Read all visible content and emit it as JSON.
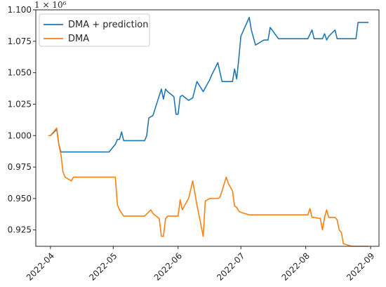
{
  "chart_data": {
    "type": "line",
    "title": "",
    "xlabel": "",
    "ylabel": "",
    "y_offset_label": "1 × 10⁶",
    "xlim": [
      "2022-03-25",
      "2022-09-05"
    ],
    "ylim": [
      0.912,
      1.1
    ],
    "x_ticks": [
      "2022-04-01",
      "2022-05-01",
      "2022-06-01",
      "2022-07-01",
      "2022-08-01",
      "2022-09-01"
    ],
    "x_tick_labels": [
      "2022-04",
      "2022-05",
      "2022-06",
      "2022-07",
      "2022-08",
      "2022-09"
    ],
    "y_ticks": [
      0.925,
      0.95,
      0.975,
      1.0,
      1.025,
      1.05,
      1.075,
      1.1
    ],
    "y_tick_labels": [
      "0.925",
      "0.950",
      "0.975",
      "1.000",
      "1.025",
      "1.050",
      "1.075",
      "1.100"
    ],
    "grid": false,
    "legend_position": "top-left",
    "series": [
      {
        "name": "DMA + prediction",
        "color": "#1f77b4",
        "x": [
          "2022-03-31",
          "2022-04-01",
          "2022-04-04",
          "2022-04-05",
          "2022-04-06",
          "2022-04-08",
          "2022-04-15",
          "2022-04-20",
          "2022-04-25",
          "2022-04-29",
          "2022-05-02",
          "2022-05-03",
          "2022-05-04",
          "2022-05-05",
          "2022-05-06",
          "2022-05-09",
          "2022-05-11",
          "2022-05-12",
          "2022-05-13",
          "2022-05-16",
          "2022-05-17",
          "2022-05-18",
          "2022-05-19",
          "2022-05-20",
          "2022-05-24",
          "2022-05-25",
          "2022-05-26",
          "2022-05-27",
          "2022-05-30",
          "2022-05-31",
          "2022-06-01",
          "2022-06-02",
          "2022-06-03",
          "2022-06-06",
          "2022-06-08",
          "2022-06-10",
          "2022-06-13",
          "2022-06-14",
          "2022-06-16",
          "2022-06-17",
          "2022-06-20",
          "2022-06-22",
          "2022-06-23",
          "2022-06-24",
          "2022-06-27",
          "2022-06-28",
          "2022-06-29",
          "2022-06-30",
          "2022-07-01",
          "2022-07-05",
          "2022-07-06",
          "2022-07-08",
          "2022-07-12",
          "2022-07-13",
          "2022-07-14",
          "2022-07-15",
          "2022-07-19",
          "2022-07-25",
          "2022-07-29",
          "2022-08-01",
          "2022-08-02",
          "2022-08-04",
          "2022-08-05",
          "2022-08-09",
          "2022-08-10",
          "2022-08-11",
          "2022-08-12",
          "2022-08-15",
          "2022-08-16",
          "2022-08-18",
          "2022-08-19",
          "2022-08-25",
          "2022-08-26",
          "2022-08-29",
          "2022-08-30",
          "2022-08-31"
        ],
        "y": [
          1.0,
          1.0,
          1.005,
          0.993,
          0.987,
          0.987,
          0.987,
          0.987,
          0.987,
          0.987,
          0.993,
          0.997,
          0.997,
          1.003,
          0.996,
          0.996,
          0.996,
          0.996,
          0.996,
          0.996,
          1.0,
          1.014,
          1.015,
          1.016,
          1.037,
          1.029,
          1.037,
          1.035,
          1.031,
          1.017,
          1.017,
          1.031,
          1.032,
          1.028,
          1.03,
          1.043,
          1.035,
          1.038,
          1.044,
          1.048,
          1.058,
          1.043,
          1.043,
          1.043,
          1.043,
          1.053,
          1.045,
          1.061,
          1.079,
          1.094,
          1.084,
          1.072,
          1.076,
          1.076,
          1.076,
          1.086,
          1.077,
          1.077,
          1.077,
          1.077,
          1.077,
          1.084,
          1.077,
          1.077,
          1.081,
          1.076,
          1.079,
          1.084,
          1.077,
          1.077,
          1.077,
          1.077,
          1.09,
          1.09,
          1.09,
          1.09
        ]
      },
      {
        "name": "DMA",
        "color": "#ff7f0e",
        "x": [
          "2022-03-31",
          "2022-04-01",
          "2022-04-04",
          "2022-04-05",
          "2022-04-06",
          "2022-04-07",
          "2022-04-08",
          "2022-04-11",
          "2022-04-12",
          "2022-04-20",
          "2022-05-01",
          "2022-05-02",
          "2022-05-03",
          "2022-05-04",
          "2022-05-06",
          "2022-05-09",
          "2022-05-16",
          "2022-05-19",
          "2022-05-20",
          "2022-05-23",
          "2022-05-24",
          "2022-05-25",
          "2022-05-26",
          "2022-05-27",
          "2022-05-30",
          "2022-06-01",
          "2022-06-02",
          "2022-06-03",
          "2022-06-06",
          "2022-06-08",
          "2022-06-10",
          "2022-06-13",
          "2022-06-14",
          "2022-06-16",
          "2022-06-17",
          "2022-06-20",
          "2022-06-21",
          "2022-06-22",
          "2022-06-24",
          "2022-06-25",
          "2022-06-27",
          "2022-06-28",
          "2022-06-29",
          "2022-06-30",
          "2022-07-01",
          "2022-07-05",
          "2022-07-07",
          "2022-07-08",
          "2022-07-12",
          "2022-08-01",
          "2022-08-02",
          "2022-08-03",
          "2022-08-04",
          "2022-08-05",
          "2022-08-08",
          "2022-08-09",
          "2022-08-10",
          "2022-08-11",
          "2022-08-12",
          "2022-08-15",
          "2022-08-16",
          "2022-08-17",
          "2022-08-18",
          "2022-08-19",
          "2022-08-23",
          "2022-08-26",
          "2022-08-31"
        ],
        "y": [
          1.0,
          1.0,
          1.006,
          0.993,
          0.985,
          0.971,
          0.967,
          0.964,
          0.967,
          0.967,
          0.967,
          0.967,
          0.945,
          0.941,
          0.936,
          0.936,
          0.936,
          0.941,
          0.938,
          0.934,
          0.92,
          0.92,
          0.934,
          0.936,
          0.936,
          0.936,
          0.949,
          0.941,
          0.95,
          0.964,
          0.945,
          0.92,
          0.948,
          0.95,
          0.95,
          0.95,
          0.951,
          0.956,
          0.967,
          0.962,
          0.956,
          0.944,
          0.943,
          0.94,
          0.939,
          0.937,
          0.937,
          0.937,
          0.937,
          0.937,
          0.937,
          0.942,
          0.935,
          0.935,
          0.934,
          0.925,
          0.935,
          0.941,
          0.935,
          0.935,
          0.933,
          0.925,
          0.923,
          0.914,
          0.912,
          0.912,
          0.912
        ]
      }
    ]
  }
}
